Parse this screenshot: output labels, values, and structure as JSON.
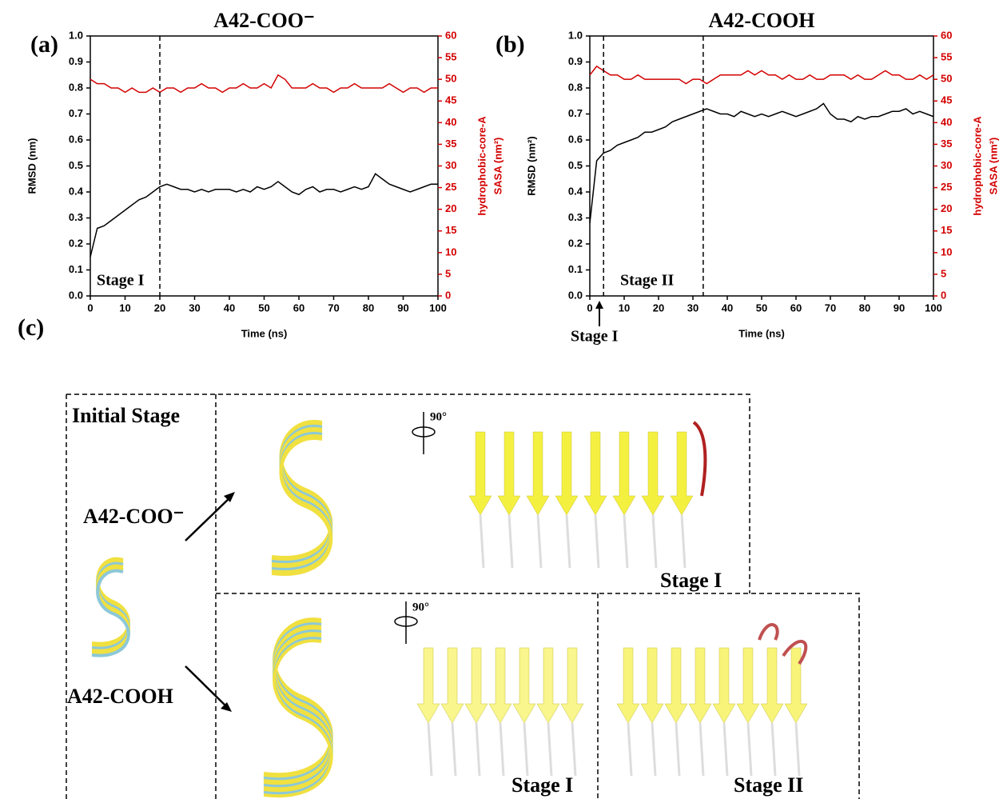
{
  "chart_data": [
    {
      "type": "line",
      "title": "A42-COO⁻",
      "xlabel": "Time (ns)",
      "ylabel": "RMSD (nm)",
      "y2label": [
        "hydrophobic-core-A",
        "SASA (nm²)"
      ],
      "x": [
        0,
        2,
        4,
        6,
        8,
        10,
        12,
        14,
        16,
        18,
        20,
        22,
        24,
        26,
        28,
        30,
        32,
        34,
        36,
        38,
        40,
        42,
        44,
        46,
        48,
        50,
        52,
        54,
        56,
        58,
        60,
        62,
        64,
        66,
        68,
        70,
        72,
        74,
        76,
        78,
        80,
        82,
        84,
        86,
        88,
        90,
        92,
        94,
        96,
        98,
        100
      ],
      "series": [
        {
          "color": "#000000",
          "values": [
            0.15,
            0.26,
            0.27,
            0.29,
            0.31,
            0.33,
            0.35,
            0.37,
            0.38,
            0.4,
            0.42,
            0.43,
            0.42,
            0.41,
            0.41,
            0.4,
            0.41,
            0.4,
            0.41,
            0.41,
            0.41,
            0.4,
            0.41,
            0.4,
            0.42,
            0.41,
            0.42,
            0.44,
            0.42,
            0.4,
            0.39,
            0.41,
            0.42,
            0.4,
            0.41,
            0.41,
            0.4,
            0.41,
            0.42,
            0.41,
            0.42,
            0.47,
            0.45,
            0.43,
            0.42,
            0.41,
            0.4,
            0.41,
            0.42,
            0.43,
            0.43
          ]
        },
        {
          "color": "#d40000",
          "axis": "y2",
          "values": [
            50,
            49,
            49,
            48,
            48,
            47,
            48,
            47,
            47,
            48,
            47,
            48,
            48,
            47,
            48,
            48,
            49,
            48,
            48,
            47,
            48,
            48,
            49,
            48,
            48,
            49,
            48,
            51,
            50,
            48,
            48,
            48,
            49,
            48,
            48,
            47,
            48,
            48,
            49,
            48,
            48,
            48,
            48,
            49,
            48,
            47,
            48,
            48,
            47,
            48,
            48
          ]
        }
      ],
      "xlim": [
        0,
        100
      ],
      "xticks": [
        0,
        10,
        20,
        30,
        40,
        50,
        60,
        70,
        80,
        90,
        100
      ],
      "ylim": [
        0,
        1
      ],
      "yticks": [
        {
          "value": 0,
          "label": "0.0"
        },
        0.1,
        0.2,
        0.3,
        0.4,
        0.5,
        0.6,
        0.7,
        0.8,
        0.9,
        {
          "value": 1,
          "label": "1.0"
        }
      ],
      "y2lim": [
        0,
        60
      ],
      "y2ticks": [
        0,
        5,
        10,
        15,
        20,
        25,
        30,
        35,
        40,
        45,
        50,
        55,
        60
      ],
      "vlines": [
        20
      ],
      "annotations": [
        "Stage I"
      ]
    },
    {
      "type": "line",
      "title": "A42-COOH",
      "xlabel": "Time (ns)",
      "ylabel": "RMSD (nm²)",
      "y2label": [
        "hydrophobic-core-A",
        "SASA (nm²)"
      ],
      "x": [
        0,
        2,
        4,
        6,
        8,
        10,
        12,
        14,
        16,
        18,
        20,
        22,
        24,
        26,
        28,
        30,
        32,
        34,
        36,
        38,
        40,
        42,
        44,
        46,
        48,
        50,
        52,
        54,
        56,
        58,
        60,
        62,
        64,
        66,
        68,
        70,
        72,
        74,
        76,
        78,
        80,
        82,
        84,
        86,
        88,
        90,
        92,
        94,
        96,
        98,
        100
      ],
      "series": [
        {
          "color": "#000000",
          "values": [
            0.28,
            0.52,
            0.55,
            0.56,
            0.58,
            0.59,
            0.6,
            0.61,
            0.63,
            0.63,
            0.64,
            0.65,
            0.67,
            0.68,
            0.69,
            0.7,
            0.71,
            0.72,
            0.71,
            0.7,
            0.7,
            0.69,
            0.71,
            0.7,
            0.69,
            0.7,
            0.69,
            0.7,
            0.71,
            0.7,
            0.69,
            0.7,
            0.71,
            0.72,
            0.74,
            0.7,
            0.68,
            0.68,
            0.67,
            0.69,
            0.68,
            0.69,
            0.69,
            0.7,
            0.71,
            0.71,
            0.72,
            0.7,
            0.71,
            0.7,
            0.69
          ]
        },
        {
          "color": "#d40000",
          "axis": "y2",
          "values": [
            51,
            53,
            52,
            51,
            51,
            50,
            50,
            51,
            50,
            50,
            50,
            50,
            50,
            50,
            49,
            50,
            50,
            49,
            50,
            51,
            51,
            51,
            51,
            52,
            51,
            52,
            51,
            51,
            50,
            51,
            50,
            50,
            51,
            50,
            50,
            51,
            51,
            51,
            50,
            51,
            50,
            50,
            51,
            52,
            51,
            51,
            50,
            50,
            51,
            50,
            51
          ]
        }
      ],
      "xlim": [
        0,
        100
      ],
      "xticks": [
        0,
        10,
        20,
        30,
        40,
        50,
        60,
        70,
        80,
        90,
        100
      ],
      "ylim": [
        0,
        1
      ],
      "yticks": [
        {
          "value": 0,
          "label": "0.0"
        },
        0.1,
        0.2,
        0.3,
        0.4,
        0.5,
        0.6,
        0.7,
        0.8,
        0.9,
        {
          "value": 1,
          "label": "1.0"
        }
      ],
      "y2lim": [
        0,
        60
      ],
      "y2ticks": [
        0,
        5,
        10,
        15,
        20,
        25,
        30,
        35,
        40,
        45,
        50,
        55,
        60
      ],
      "vlines": [
        4,
        33
      ],
      "annotations": [
        "Stage I",
        "Stage II"
      ]
    }
  ],
  "panel_labels": [
    "(a)",
    "(b)",
    "(c)"
  ],
  "panel_c": {
    "initial": "Initial Stage",
    "labels": [
      "A42-COO⁻",
      "A42-COOH"
    ],
    "rotation": "90°",
    "stages": [
      "Stage I",
      "Stage I",
      "Stage II"
    ]
  }
}
